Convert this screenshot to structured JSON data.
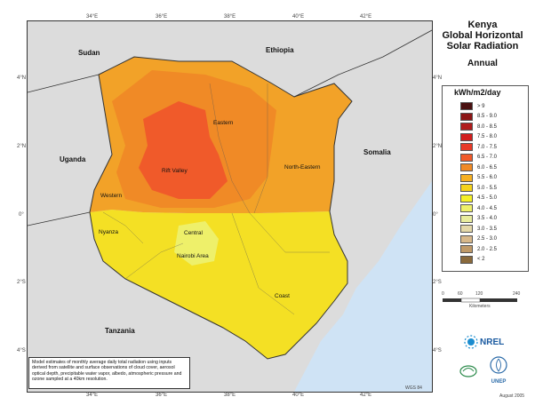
{
  "title": {
    "line1": "Kenya",
    "line2": "Global Horizontal",
    "line3": "Solar Radiation",
    "line4": "Annual"
  },
  "legend": {
    "unit": "kWh/m2/day",
    "items": [
      {
        "label": "> 9",
        "color": "#4a1010"
      },
      {
        "label": "8.5 - 9.0",
        "color": "#8c1515"
      },
      {
        "label": "8.0 - 8.5",
        "color": "#b01c1c"
      },
      {
        "label": "7.5 - 8.0",
        "color": "#d21f1f"
      },
      {
        "label": "7.0 - 7.5",
        "color": "#e83a28"
      },
      {
        "label": "6.5 - 7.0",
        "color": "#f05a2a"
      },
      {
        "label": "6.0 - 6.5",
        "color": "#f08a26"
      },
      {
        "label": "5.5 - 6.0",
        "color": "#f6b022"
      },
      {
        "label": "5.0 - 5.5",
        "color": "#f4d21c"
      },
      {
        "label": "4.5 - 5.0",
        "color": "#f4f028"
      },
      {
        "label": "4.0 - 4.5",
        "color": "#eef06a"
      },
      {
        "label": "3.5 - 4.0",
        "color": "#e8ec9c"
      },
      {
        "label": "3.0 - 3.5",
        "color": "#e4d8a8"
      },
      {
        "label": "2.5 - 3.0",
        "color": "#d8b88a"
      },
      {
        "label": "2.0 - 2.5",
        "color": "#c09a68"
      },
      {
        "label": "< 2",
        "color": "#8a6a3c"
      }
    ]
  },
  "countries": {
    "sudan": "Sudan",
    "ethiopia": "Ethiopia",
    "uganda": "Uganda",
    "somalia": "Somalia",
    "tanzania": "Tanzania"
  },
  "regions": {
    "eastern": "Eastern",
    "north_eastern": "North-Eastern",
    "rift_valley": "Rift Valley",
    "western": "Western",
    "nyanza": "Nyanza",
    "central": "Central",
    "nairobi": "Nairobi Area",
    "coast": "Coast"
  },
  "ticks": {
    "lon": [
      "34°E",
      "36°E",
      "38°E",
      "40°E",
      "42°E"
    ],
    "lat": [
      "4°N",
      "2°N",
      "0°",
      "2°S",
      "4°S"
    ]
  },
  "scale": {
    "labels": [
      "0",
      "60",
      "120",
      "240"
    ],
    "unit": "Kilometers"
  },
  "note": "Model estimates of monthly average daily total radiation using inputs derived from satellite and surface observations of cloud cover, aerosol optical depth, precipitable water vapor, albedo, atmospheric pressure and ozone sampled at a 40km resolution.",
  "projection": "WGS 84",
  "date": "August 2005",
  "logos": {
    "nrel": "NREL",
    "unep": "UNEP"
  },
  "colors": {
    "land_other": "#dcdcdc",
    "ocean": "#cfe3f5",
    "border": "#333333"
  }
}
